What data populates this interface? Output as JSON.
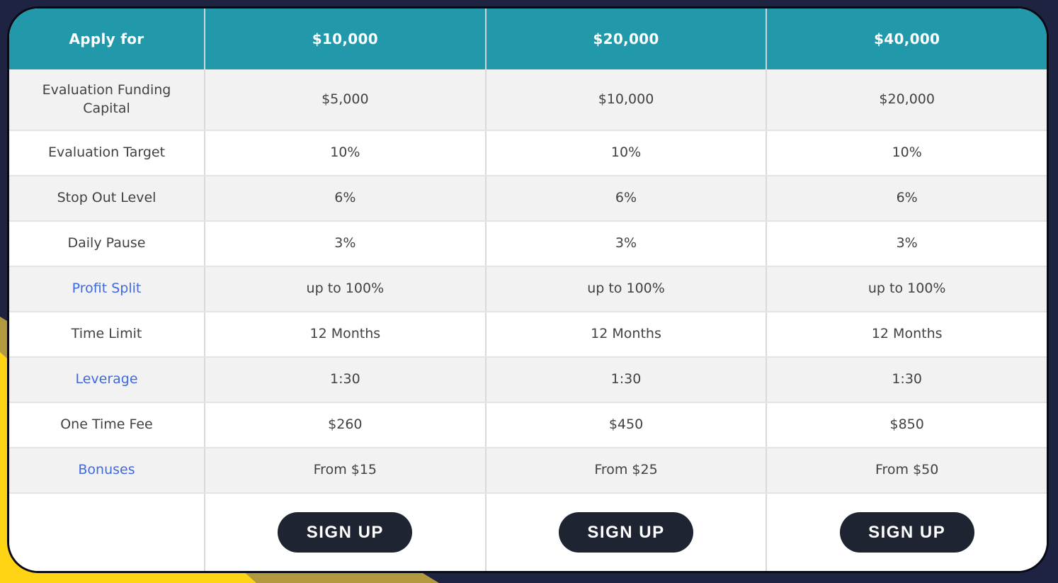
{
  "table": {
    "header": {
      "label": "Apply for",
      "plans": [
        "$10,000",
        "$20,000",
        "$40,000"
      ]
    },
    "rows": [
      {
        "label": "Evaluation Funding Capital",
        "is_link": false,
        "values": [
          "$5,000",
          "$10,000",
          "$20,000"
        ]
      },
      {
        "label": "Evaluation Target",
        "is_link": false,
        "values": [
          "10%",
          "10%",
          "10%"
        ]
      },
      {
        "label": "Stop Out Level",
        "is_link": false,
        "values": [
          "6%",
          "6%",
          "6%"
        ]
      },
      {
        "label": "Daily Pause",
        "is_link": false,
        "values": [
          "3%",
          "3%",
          "3%"
        ]
      },
      {
        "label": "Profit Split",
        "is_link": true,
        "values": [
          "up to 100%",
          "up to 100%",
          "up to 100%"
        ]
      },
      {
        "label": "Time Limit",
        "is_link": false,
        "values": [
          "12 Months",
          "12 Months",
          "12 Months"
        ]
      },
      {
        "label": "Leverage",
        "is_link": true,
        "values": [
          "1:30",
          "1:30",
          "1:30"
        ]
      },
      {
        "label": "One Time Fee",
        "is_link": false,
        "values": [
          "$260",
          "$450",
          "$850"
        ]
      },
      {
        "label": "Bonuses",
        "is_link": true,
        "values": [
          "From $15",
          "From $25",
          "From $50"
        ]
      }
    ],
    "signup_label": "SIGN UP"
  },
  "colors": {
    "header_bg": "#2199ab",
    "header_text": "#ffffff",
    "row_alt_bg": "#f2f2f2",
    "row_bg": "#ffffff",
    "cell_text": "#414141",
    "link_text": "#3e69e1",
    "button_bg": "#1e2432",
    "button_text": "#ffffff",
    "page_bg": "#1f2342",
    "accent_yellow": "#ffd414",
    "accent_gold": "#b2983f",
    "divider": "#d9d9d9",
    "card_border": "#0a0a16"
  }
}
